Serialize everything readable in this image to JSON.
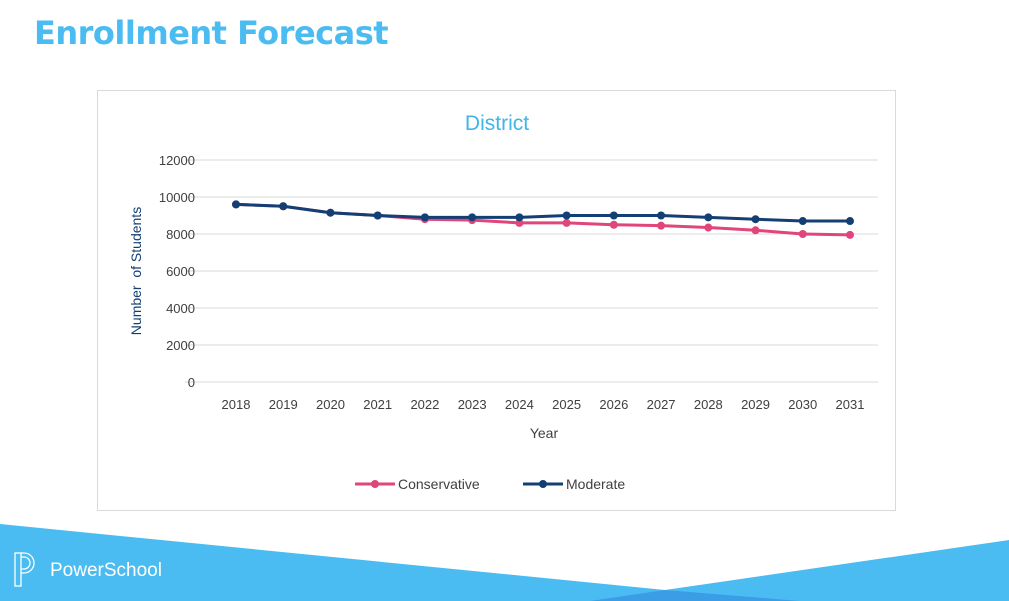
{
  "page_title": "Enrollment Forecast",
  "brand": {
    "name": "PowerSchool",
    "color": "#4bbcf2"
  },
  "chart_data": {
    "type": "line",
    "title": "District",
    "xlabel": "Year",
    "ylabel": "Number  of Students",
    "ylim": [
      0,
      12000
    ],
    "yticks": [
      0,
      2000,
      4000,
      6000,
      8000,
      10000,
      12000
    ],
    "grid": true,
    "legend_position": "bottom",
    "categories": [
      "2018",
      "2019",
      "2020",
      "2021",
      "2022",
      "2023",
      "2024",
      "2025",
      "2026",
      "2027",
      "2028",
      "2029",
      "2030",
      "2031"
    ],
    "series": [
      {
        "name": "Conservative",
        "color": "#e0457b",
        "values": [
          9600,
          9500,
          9150,
          9000,
          8800,
          8750,
          8600,
          8600,
          8500,
          8450,
          8350,
          8200,
          8000,
          7950
        ]
      },
      {
        "name": "Moderate",
        "color": "#123f74",
        "values": [
          9600,
          9500,
          9150,
          9000,
          8900,
          8900,
          8900,
          9000,
          9000,
          9000,
          8900,
          8800,
          8700,
          8700
        ]
      }
    ]
  }
}
